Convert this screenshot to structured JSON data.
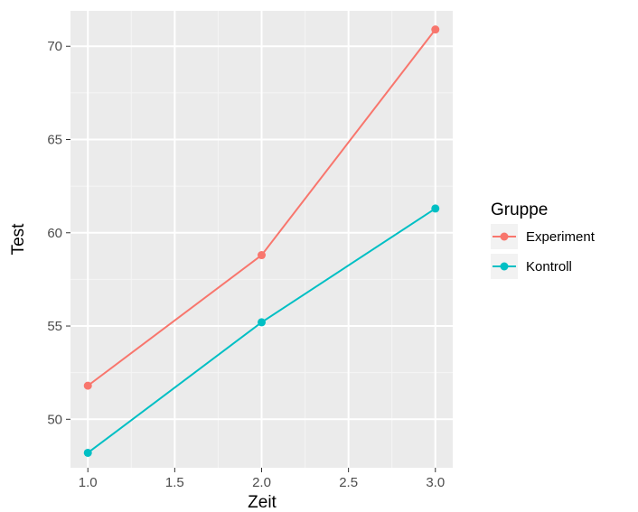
{
  "chart_data": {
    "type": "line",
    "xlabel": "Zeit",
    "ylabel": "Test",
    "xlim": [
      0.9,
      3.1
    ],
    "ylim": [
      47.4,
      71.9
    ],
    "x_ticks": [
      1.0,
      1.5,
      2.0,
      2.5,
      3.0
    ],
    "x_tick_labels": [
      "1.0",
      "1.5",
      "2.0",
      "2.5",
      "3.0"
    ],
    "y_ticks": [
      50,
      55,
      60,
      65,
      70
    ],
    "y_tick_labels": [
      "50",
      "55",
      "60",
      "65",
      "70"
    ],
    "grid": true,
    "legend": {
      "title": "Gruppe",
      "position": "right"
    },
    "series": [
      {
        "name": "Experiment",
        "color": "#F8766D",
        "x": [
          1.0,
          2.0,
          3.0
        ],
        "y": [
          51.8,
          58.8,
          70.9
        ]
      },
      {
        "name": "Kontroll",
        "color": "#00BFC4",
        "x": [
          1.0,
          2.0,
          3.0
        ],
        "y": [
          48.2,
          55.2,
          61.3
        ]
      }
    ],
    "colors": {
      "panel": "#EBEBEB",
      "grid_major": "#FFFFFF",
      "grid_minor": "#F5F5F5",
      "tick": "#333333"
    }
  }
}
